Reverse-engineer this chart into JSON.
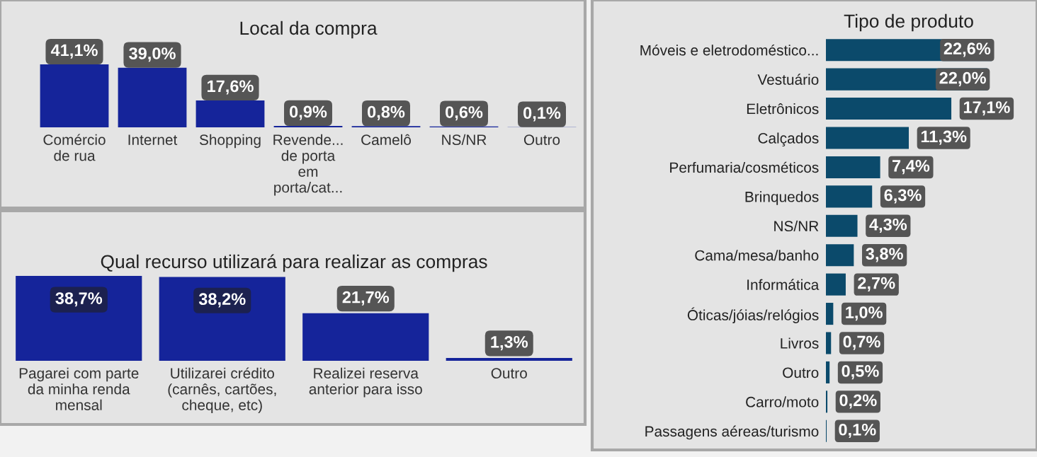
{
  "chart_data": [
    {
      "type": "bar",
      "title": "Local da compra",
      "categories": [
        "Comércio de rua",
        "Internet",
        "Shopping",
        "Revende... de porta em porta/cat...",
        "Camelô",
        "NS/NR",
        "Outro"
      ],
      "values": [
        41.1,
        39.0,
        17.6,
        0.9,
        0.8,
        0.6,
        0.1
      ],
      "value_labels": [
        "41,1%",
        "39,0%",
        "17,6%",
        "0,9%",
        "0,8%",
        "0,6%",
        "0,1%"
      ],
      "color": "#15249a",
      "tick_labels": "x"
    },
    {
      "type": "bar",
      "title": "Qual recurso utilizará para realizar as compras",
      "categories": [
        "Pagarei com parte da minha renda mensal",
        "Utilizarei crédito (carnês, cartões, cheque, etc)",
        "Realizei reserva anterior para isso",
        "Outro"
      ],
      "values": [
        38.7,
        38.2,
        21.7,
        1.3
      ],
      "value_labels": [
        "38,7%",
        "38,2%",
        "21,7%",
        "1,3%"
      ],
      "color": "#15249a",
      "tick_labels": "x"
    },
    {
      "type": "bar",
      "orientation": "horizontal",
      "title": "Tipo de produto",
      "categories": [
        "Móveis e eletrodoméstico...",
        "Vestuário",
        "Eletrônicos",
        "Calçados",
        "Perfumaria/cosméticos",
        "Brinquedos",
        "NS/NR",
        "Cama/mesa/banho",
        "Informática",
        "Óticas/jóias/relógios",
        "Livros",
        "Outro",
        "Carro/moto",
        "Passagens aéreas/turismo"
      ],
      "values": [
        22.6,
        22.0,
        17.1,
        11.3,
        7.4,
        6.3,
        4.3,
        3.8,
        2.7,
        1.0,
        0.7,
        0.5,
        0.2,
        0.1
      ],
      "value_labels": [
        "22,6%",
        "22,0%",
        "17,1%",
        "11,3%",
        "7,4%",
        "6,3%",
        "4,3%",
        "3,8%",
        "2,7%",
        "1,0%",
        "0,7%",
        "0,5%",
        "0,2%",
        "0,1%"
      ],
      "color": "#0b4a6b",
      "tick_labels": "y"
    }
  ]
}
